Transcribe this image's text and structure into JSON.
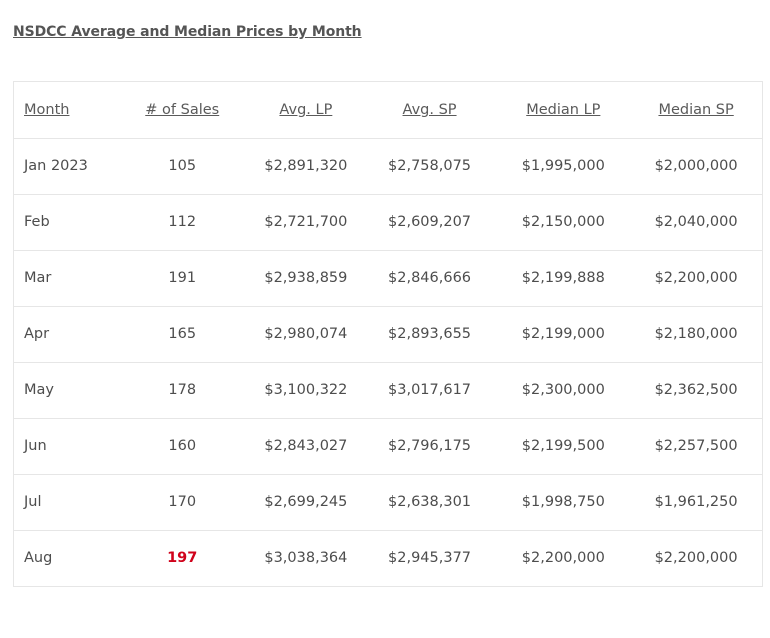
{
  "title": "NSDCC Average and Median Prices by Month",
  "colors": {
    "highlight": "#d0021b"
  },
  "table": {
    "headers": [
      "Month",
      "# of Sales",
      "Avg. LP",
      "Avg. SP",
      "Median LP",
      "Median SP"
    ],
    "rows": [
      {
        "month": "Jan 2023",
        "sales": "105",
        "avg_lp": "$2,891,320",
        "avg_sp": "$2,758,075",
        "median_lp": "$1,995,000",
        "median_sp": "$2,000,000"
      },
      {
        "month": "Feb",
        "sales": "112",
        "avg_lp": "$2,721,700",
        "avg_sp": "$2,609,207",
        "median_lp": "$2,150,000",
        "median_sp": "$2,040,000"
      },
      {
        "month": "Mar",
        "sales": "191",
        "avg_lp": "$2,938,859",
        "avg_sp": "$2,846,666",
        "median_lp": "$2,199,888",
        "median_sp": "$2,200,000"
      },
      {
        "month": "Apr",
        "sales": "165",
        "avg_lp": "$2,980,074",
        "avg_sp": "$2,893,655",
        "median_lp": "$2,199,000",
        "median_sp": "$2,180,000"
      },
      {
        "month": "May",
        "sales": "178",
        "avg_lp": "$3,100,322",
        "avg_sp": "$3,017,617",
        "median_lp": "$2,300,000",
        "median_sp": "$2,362,500"
      },
      {
        "month": "Jun",
        "sales": "160",
        "avg_lp": "$2,843,027",
        "avg_sp": "$2,796,175",
        "median_lp": "$2,199,500",
        "median_sp": "$2,257,500"
      },
      {
        "month": "Jul",
        "sales": "170",
        "avg_lp": "$2,699,245",
        "avg_sp": "$2,638,301",
        "median_lp": "$1,998,750",
        "median_sp": "$1,961,250"
      },
      {
        "month": "Aug",
        "sales": "197",
        "sales_highlight": true,
        "avg_lp": "$3,038,364",
        "avg_sp": "$2,945,377",
        "median_lp": "$2,200,000",
        "median_sp": "$2,200,000"
      }
    ]
  }
}
